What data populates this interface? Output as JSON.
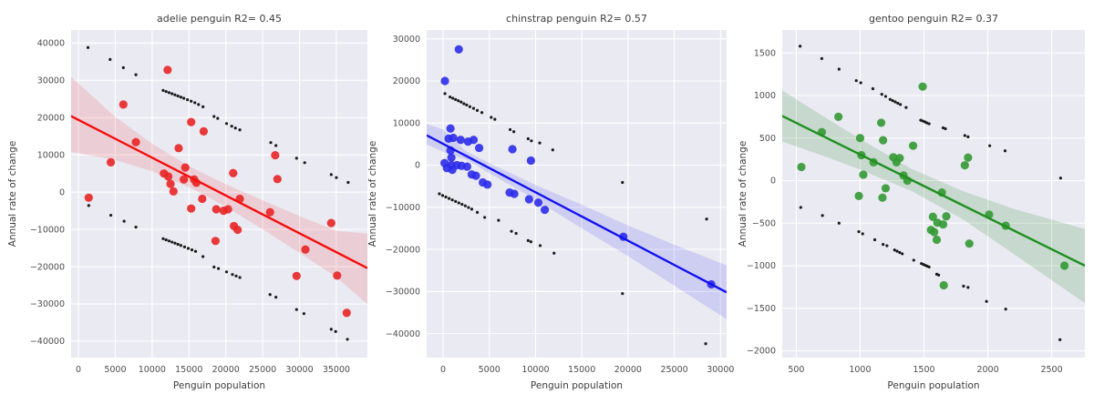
{
  "figure": {
    "background": "#ffffff",
    "panel_background": "#eaeaf2",
    "grid_color": "#ffffff",
    "text_color": "#3c3c3c",
    "tick_color": "#4d4d4d",
    "black_point_color": "#1c1c1c",
    "xlabel": "Penguin population",
    "ylabel": "Annual rate of change"
  },
  "chart_data": [
    {
      "type": "scatter",
      "title": "adelie penguin R2= 0.45",
      "xlabel": "Penguin population",
      "ylabel": "Annual rate of change",
      "dot_color": "#e92525",
      "line_color": "#f40e0e",
      "band_color": "rgba(244,60,60,0.16)",
      "xlim": [
        -990,
        39210
      ],
      "ylim": [
        -44400,
        43500
      ],
      "xticks": [
        0,
        5000,
        10000,
        15000,
        20000,
        25000,
        30000,
        35000
      ],
      "xtick_labels": [
        "0",
        "5000",
        "10000",
        "15000",
        "20000",
        "25000",
        "30000",
        "35000"
      ],
      "yticks": [
        40000,
        30000,
        20000,
        10000,
        0,
        -10000,
        -20000,
        -30000,
        -40000
      ],
      "ytick_labels": [
        "40000",
        "30000",
        "20000",
        "10000",
        "0",
        "−10000",
        "−20000",
        "−30000",
        "−40000"
      ],
      "regression": {
        "x1": -990,
        "y1": 20400,
        "x2": 39210,
        "y2": -20400
      },
      "ci_band": [
        [
          -990,
          10800,
          31000
        ],
        [
          5000,
          8600,
          20200
        ],
        [
          10000,
          5600,
          13000
        ],
        [
          15000,
          1300,
          7000
        ],
        [
          17000,
          -700,
          5000
        ],
        [
          20000,
          -3900,
          2100
        ],
        [
          25000,
          -10000,
          -2200
        ],
        [
          30000,
          -16300,
          -6400
        ],
        [
          35000,
          -22800,
          -10400
        ],
        [
          39210,
          -30100,
          -11100
        ]
      ],
      "points": [
        [
          1400,
          -1500
        ],
        [
          4400,
          8000
        ],
        [
          6100,
          23500
        ],
        [
          7800,
          13400
        ],
        [
          12100,
          32800
        ],
        [
          13600,
          11800
        ],
        [
          15300,
          18800
        ],
        [
          17000,
          16300
        ],
        [
          11600,
          5000
        ],
        [
          12200,
          4200
        ],
        [
          12500,
          2200
        ],
        [
          12900,
          200
        ],
        [
          14300,
          3400
        ],
        [
          14500,
          6600
        ],
        [
          15700,
          3400
        ],
        [
          16000,
          2500
        ],
        [
          15300,
          -4400
        ],
        [
          16800,
          -1800
        ],
        [
          18700,
          -4600
        ],
        [
          19700,
          -5000
        ],
        [
          20300,
          -4600
        ],
        [
          21000,
          5100
        ],
        [
          21100,
          -9100
        ],
        [
          21600,
          -10100
        ],
        [
          18600,
          -13100
        ],
        [
          21900,
          -1800
        ],
        [
          26000,
          -5400
        ],
        [
          26700,
          9900
        ],
        [
          27000,
          3500
        ],
        [
          29600,
          -22500
        ],
        [
          30800,
          -15400
        ],
        [
          34300,
          -8300
        ],
        [
          35100,
          -22400
        ],
        [
          36400,
          -32400
        ]
      ],
      "black_points": [
        [
          1300,
          38800
        ],
        [
          4300,
          35600
        ],
        [
          6100,
          33400
        ],
        [
          7800,
          31500
        ],
        [
          11500,
          27300
        ],
        [
          11900,
          27000
        ],
        [
          12300,
          26700
        ],
        [
          12700,
          26400
        ],
        [
          13100,
          26100
        ],
        [
          13500,
          25800
        ],
        [
          13900,
          25500
        ],
        [
          14300,
          25200
        ],
        [
          14800,
          24800
        ],
        [
          15300,
          24400
        ],
        [
          15800,
          24000
        ],
        [
          16300,
          23500
        ],
        [
          16900,
          22900
        ],
        [
          18400,
          20300
        ],
        [
          18900,
          19800
        ],
        [
          20100,
          18400
        ],
        [
          20800,
          17700
        ],
        [
          21300,
          17200
        ],
        [
          21900,
          16700
        ],
        [
          26100,
          13300
        ],
        [
          26800,
          12500
        ],
        [
          29600,
          9100
        ],
        [
          30700,
          7900
        ],
        [
          34300,
          4700
        ],
        [
          35000,
          3900
        ],
        [
          36600,
          2600
        ],
        [
          1400,
          -3600
        ],
        [
          4400,
          -6200
        ],
        [
          6200,
          -7800
        ],
        [
          7800,
          -9400
        ],
        [
          11500,
          -12500
        ],
        [
          11900,
          -12800
        ],
        [
          12300,
          -13100
        ],
        [
          12700,
          -13400
        ],
        [
          13100,
          -13700
        ],
        [
          13500,
          -14000
        ],
        [
          13900,
          -14300
        ],
        [
          14400,
          -14700
        ],
        [
          14900,
          -15100
        ],
        [
          15400,
          -15500
        ],
        [
          15900,
          -15900
        ],
        [
          16900,
          -17300
        ],
        [
          18400,
          -20100
        ],
        [
          19000,
          -20500
        ],
        [
          20100,
          -21400
        ],
        [
          20900,
          -22100
        ],
        [
          21400,
          -22500
        ],
        [
          21900,
          -22900
        ],
        [
          26000,
          -27500
        ],
        [
          26800,
          -28200
        ],
        [
          29600,
          -31500
        ],
        [
          30600,
          -32600
        ],
        [
          34300,
          -36800
        ],
        [
          34900,
          -37400
        ],
        [
          36500,
          -39500
        ]
      ]
    },
    {
      "type": "scatter",
      "title": "chinstrap penguin R2= 0.57",
      "xlabel": "Penguin population",
      "ylabel": "Annual rate of change",
      "dot_color": "#2c2cea",
      "line_color": "#1212f0",
      "band_color": "rgba(60,60,244,0.16)",
      "xlim": [
        -1775,
        30660
      ],
      "ylim": [
        -45700,
        32100
      ],
      "xticks": [
        0,
        5000,
        10000,
        15000,
        20000,
        25000,
        30000
      ],
      "xtick_labels": [
        "0",
        "5000",
        "10000",
        "15000",
        "20000",
        "25000",
        "30000"
      ],
      "yticks": [
        30000,
        20000,
        10000,
        0,
        -10000,
        -20000,
        -30000,
        -40000
      ],
      "ytick_labels": [
        "30000",
        "20000",
        "10000",
        "0",
        "−10000",
        "−20000",
        "−30000",
        "−40000"
      ],
      "regression": {
        "x1": -1775,
        "y1": 7100,
        "x2": 30660,
        "y2": -30200
      },
      "ci_band": [
        [
          -1775,
          4900,
          9800
        ],
        [
          0,
          3200,
          8500
        ],
        [
          2500,
          1300,
          3300
        ],
        [
          5000,
          -1900,
          500
        ],
        [
          10000,
          -8200,
          -4700
        ],
        [
          15000,
          -15000,
          -9400
        ],
        [
          20000,
          -21600,
          -14300
        ],
        [
          25000,
          -28600,
          -18900
        ],
        [
          30660,
          -36600,
          -23800
        ]
      ],
      "points": [
        [
          200,
          20000
        ],
        [
          1700,
          27500
        ],
        [
          800,
          8700
        ],
        [
          600,
          6300
        ],
        [
          1100,
          6500
        ],
        [
          1900,
          6000
        ],
        [
          2700,
          5600
        ],
        [
          3300,
          6000
        ],
        [
          3900,
          4100
        ],
        [
          800,
          3500
        ],
        [
          900,
          1800
        ],
        [
          7500,
          3800
        ],
        [
          9500,
          1100
        ],
        [
          160,
          500
        ],
        [
          900,
          0
        ],
        [
          1500,
          0
        ],
        [
          2000,
          -150
        ],
        [
          2600,
          -350
        ],
        [
          420,
          -700
        ],
        [
          1000,
          -1100
        ],
        [
          3100,
          -2200
        ],
        [
          3550,
          -2500
        ],
        [
          4300,
          -4100
        ],
        [
          4800,
          -4600
        ],
        [
          7200,
          -6500
        ],
        [
          7700,
          -6800
        ],
        [
          9300,
          -8100
        ],
        [
          10300,
          -8900
        ],
        [
          11000,
          -10600
        ],
        [
          19500,
          -17000
        ],
        [
          29000,
          -28300
        ]
      ],
      "black_points": [
        [
          200,
          17000
        ],
        [
          750,
          16200
        ],
        [
          1050,
          15900
        ],
        [
          1350,
          15600
        ],
        [
          1650,
          15300
        ],
        [
          1950,
          15000
        ],
        [
          2250,
          14600
        ],
        [
          2550,
          14300
        ],
        [
          2900,
          13900
        ],
        [
          3300,
          13500
        ],
        [
          3700,
          13000
        ],
        [
          4200,
          12500
        ],
        [
          5200,
          11350
        ],
        [
          5600,
          10900
        ],
        [
          7250,
          8450
        ],
        [
          7650,
          7950
        ],
        [
          9200,
          6280
        ],
        [
          9550,
          5780
        ],
        [
          10450,
          5280
        ],
        [
          11860,
          3620
        ],
        [
          -400,
          -6800
        ],
        [
          -50,
          -7200
        ],
        [
          300,
          -7550
        ],
        [
          650,
          -7900
        ],
        [
          1000,
          -8250
        ],
        [
          1350,
          -8600
        ],
        [
          1700,
          -8950
        ],
        [
          2050,
          -9300
        ],
        [
          2400,
          -9650
        ],
        [
          2750,
          -10050
        ],
        [
          3100,
          -10450
        ],
        [
          3700,
          -11200
        ],
        [
          4500,
          -12400
        ],
        [
          6000,
          -13100
        ],
        [
          7400,
          -15700
        ],
        [
          7900,
          -16200
        ],
        [
          9200,
          -17900
        ],
        [
          9500,
          -18200
        ],
        [
          10500,
          -19100
        ],
        [
          12000,
          -20900
        ],
        [
          19400,
          -4100
        ],
        [
          28500,
          -12800
        ],
        [
          19400,
          -30500
        ],
        [
          28400,
          -42400
        ]
      ]
    },
    {
      "type": "scatter",
      "title": "gentoo penguin R2= 0.37",
      "xlabel": "Penguin population",
      "ylabel": "Annual rate of change",
      "dot_color": "#339933",
      "line_color": "#1f8f1f",
      "band_color": "rgba(46,139,46,0.18)",
      "xlim": [
        390,
        2760
      ],
      "ylim": [
        -2080,
        1770
      ],
      "xticks": [
        500,
        1000,
        1500,
        2000,
        2500
      ],
      "xtick_labels": [
        "500",
        "1000",
        "1500",
        "2000",
        "2500"
      ],
      "yticks": [
        1500,
        1000,
        500,
        0,
        -500,
        -1000,
        -1500,
        -2000
      ],
      "ytick_labels": [
        "1500",
        "1000",
        "500",
        "0",
        "−500",
        "−1000",
        "−1500",
        "−2000"
      ],
      "regression": {
        "x1": 390,
        "y1": 760,
        "x2": 2760,
        "y2": -1000
      },
      "ci_band": [
        [
          390,
          460,
          1060
        ],
        [
          750,
          270,
          720
        ],
        [
          1000,
          130,
          490
        ],
        [
          1400,
          -120,
          140
        ],
        [
          1800,
          -450,
          -120
        ],
        [
          2200,
          -860,
          -330
        ],
        [
          2760,
          -1440,
          -570
        ]
      ],
      "points": [
        [
          540,
          160
        ],
        [
          700,
          570
        ],
        [
          830,
          750
        ],
        [
          1000,
          500
        ],
        [
          1010,
          300
        ],
        [
          1025,
          70
        ],
        [
          990,
          -180
        ],
        [
          1105,
          215
        ],
        [
          1165,
          680
        ],
        [
          1180,
          475
        ],
        [
          1175,
          -200
        ],
        [
          1260,
          275
        ],
        [
          1310,
          265
        ],
        [
          1285,
          215
        ],
        [
          1340,
          60
        ],
        [
          1370,
          0
        ],
        [
          1200,
          -90
        ],
        [
          1415,
          410
        ],
        [
          1490,
          1105
        ],
        [
          1640,
          -140
        ],
        [
          1845,
          270
        ],
        [
          1820,
          180
        ],
        [
          1570,
          -425
        ],
        [
          1675,
          -420
        ],
        [
          1605,
          -495
        ],
        [
          1650,
          -515
        ],
        [
          1555,
          -580
        ],
        [
          1580,
          -605
        ],
        [
          1600,
          -695
        ],
        [
          1855,
          -740
        ],
        [
          2010,
          -400
        ],
        [
          2140,
          -530
        ],
        [
          1655,
          -1230
        ],
        [
          2600,
          -1000
        ]
      ],
      "black_points": [
        [
          530,
          1580
        ],
        [
          700,
          1435
        ],
        [
          835,
          1310
        ],
        [
          970,
          1175
        ],
        [
          1005,
          1150
        ],
        [
          1100,
          1080
        ],
        [
          1170,
          1015
        ],
        [
          1200,
          990
        ],
        [
          1235,
          955
        ],
        [
          1255,
          940
        ],
        [
          1275,
          925
        ],
        [
          1295,
          910
        ],
        [
          1315,
          895
        ],
        [
          1360,
          860
        ],
        [
          1475,
          710
        ],
        [
          1492,
          700
        ],
        [
          1508,
          690
        ],
        [
          1524,
          678
        ],
        [
          1540,
          668
        ],
        [
          1650,
          620
        ],
        [
          1668,
          610
        ],
        [
          1820,
          530
        ],
        [
          1845,
          515
        ],
        [
          2015,
          410
        ],
        [
          2135,
          350
        ],
        [
          2570,
          30
        ],
        [
          535,
          -315
        ],
        [
          705,
          -410
        ],
        [
          835,
          -500
        ],
        [
          990,
          -600
        ],
        [
          1020,
          -625
        ],
        [
          1115,
          -695
        ],
        [
          1180,
          -750
        ],
        [
          1210,
          -765
        ],
        [
          1270,
          -815
        ],
        [
          1290,
          -830
        ],
        [
          1310,
          -845
        ],
        [
          1330,
          -860
        ],
        [
          1420,
          -935
        ],
        [
          1480,
          -975
        ],
        [
          1495,
          -985
        ],
        [
          1510,
          -995
        ],
        [
          1525,
          -1005
        ],
        [
          1540,
          -1015
        ],
        [
          1600,
          -1100
        ],
        [
          1615,
          -1110
        ],
        [
          1810,
          -1240
        ],
        [
          1845,
          -1255
        ],
        [
          1990,
          -1420
        ],
        [
          2140,
          -1510
        ],
        [
          2565,
          -1870
        ]
      ]
    }
  ]
}
